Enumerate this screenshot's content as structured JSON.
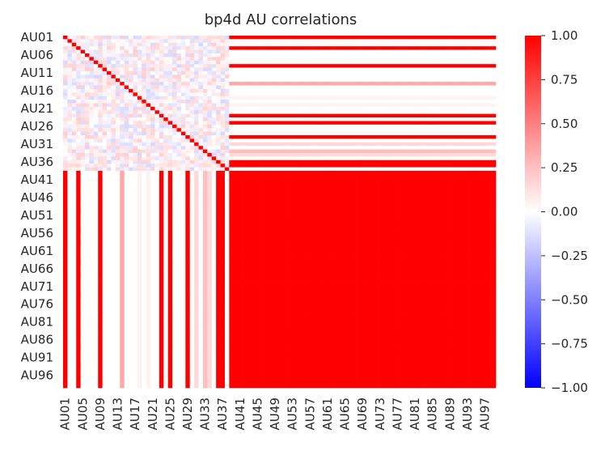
{
  "chart_data": {
    "type": "heatmap",
    "title": "bp4d AU correlations",
    "xlabel": "",
    "ylabel": "",
    "grid": false,
    "dimension": 99,
    "row_labels_shown": [
      "AU01",
      "AU06",
      "AU11",
      "AU16",
      "AU21",
      "AU26",
      "AU31",
      "AU36",
      "AU41",
      "AU46",
      "AU51",
      "AU56",
      "AU61",
      "AU66",
      "AU71",
      "AU76",
      "AU81",
      "AU86",
      "AU91",
      "AU96"
    ],
    "col_labels_shown": [
      "AU01",
      "AU05",
      "AU09",
      "AU13",
      "AU17",
      "AU21",
      "AU25",
      "AU29",
      "AU33",
      "AU37",
      "AU41",
      "AU45",
      "AU49",
      "AU53",
      "AU57",
      "AU61",
      "AU65",
      "AU69",
      "AU73",
      "AU77",
      "AU81",
      "AU85",
      "AU89",
      "AU93",
      "AU97"
    ],
    "colorbar": {
      "vmin": -1.0,
      "vmax": 1.0,
      "ticks": [
        "1.00",
        "0.75",
        "0.50",
        "0.25",
        "0.00",
        "−0.25",
        "−0.50",
        "−0.75",
        "−1.00"
      ],
      "cmap": [
        "#0000ff",
        "#ffffff",
        "#ff0000"
      ]
    },
    "measured_count": 38,
    "column_correlation_with_filled_block": [
      1.0,
      0.0,
      0.0,
      1.0,
      0.0,
      0.0,
      0.0,
      0.0,
      1.0,
      0.0,
      0.0,
      0.0,
      0.0,
      0.35,
      0.0,
      0.0,
      0.0,
      0.05,
      0.0,
      0.05,
      0.0,
      0.0,
      1.0,
      0.0,
      1.0,
      0.0,
      0.0,
      0.0,
      1.0,
      0.0,
      0.15,
      0.0,
      0.25,
      0.15,
      0.0,
      1.0,
      1.0,
      0.0
    ],
    "filled_block_value": 1.0
  }
}
